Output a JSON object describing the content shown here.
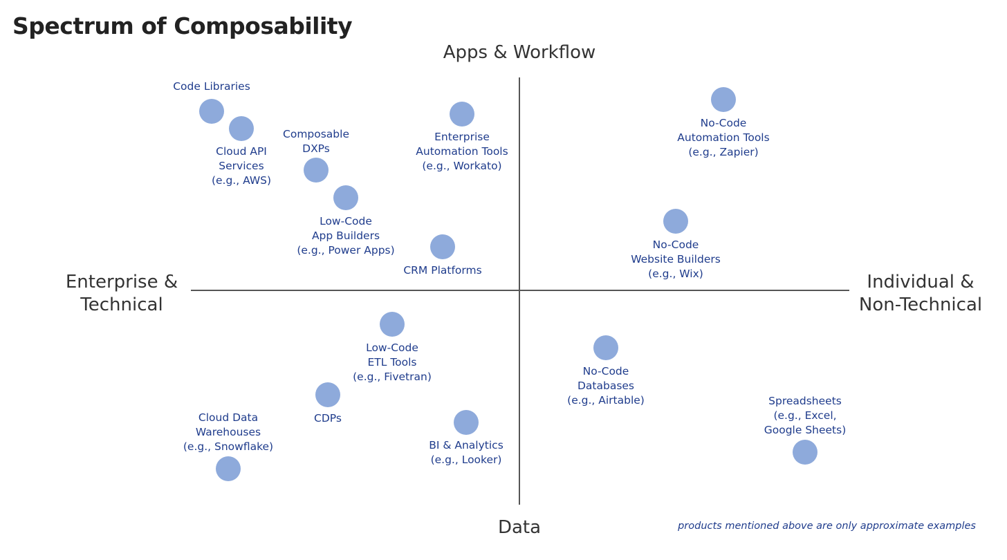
{
  "title": "Spectrum of Composability",
  "axes": {
    "top": "Apps & Workflow",
    "bottom": "Data",
    "left": [
      "Enterprise &",
      "Technical"
    ],
    "right": [
      "Individual &",
      "Non-Technical"
    ]
  },
  "colors": {
    "dot": "#8eaadb",
    "label": "#1f3c8c",
    "axis": "#555555"
  },
  "items": [
    {
      "lines": [
        "Code Libraries"
      ]
    },
    {
      "lines": [
        "Cloud API",
        "Services",
        "(e.g., AWS)"
      ]
    },
    {
      "lines": [
        "Composable",
        "DXPs"
      ]
    },
    {
      "lines": [
        "Low-Code",
        "App Builders",
        "(e.g., Power Apps)"
      ]
    },
    {
      "lines": [
        "CRM Platforms"
      ]
    },
    {
      "lines": [
        "Enterprise",
        "Automation Tools",
        "(e.g., Workato)"
      ]
    },
    {
      "lines": [
        "No-Code",
        "Automation Tools",
        "(e.g., Zapier)"
      ]
    },
    {
      "lines": [
        "No-Code",
        "Website Builders",
        "(e.g., Wix)"
      ]
    },
    {
      "lines": [
        "Low-Code",
        "ETL Tools",
        "(e.g., Fivetran)"
      ]
    },
    {
      "lines": [
        "CDPs"
      ]
    },
    {
      "lines": [
        "Cloud Data",
        "Warehouses",
        "(e.g., Snowflake)"
      ]
    },
    {
      "lines": [
        "BI & Analytics",
        "(e.g., Looker)"
      ]
    },
    {
      "lines": [
        "No-Code",
        "Databases",
        "(e.g., Airtable)"
      ]
    },
    {
      "lines": [
        "Spreadsheets",
        "(e.g., Excel,",
        "Google Sheets)"
      ]
    }
  ],
  "footnote": "products mentioned above are only approximate examples"
}
